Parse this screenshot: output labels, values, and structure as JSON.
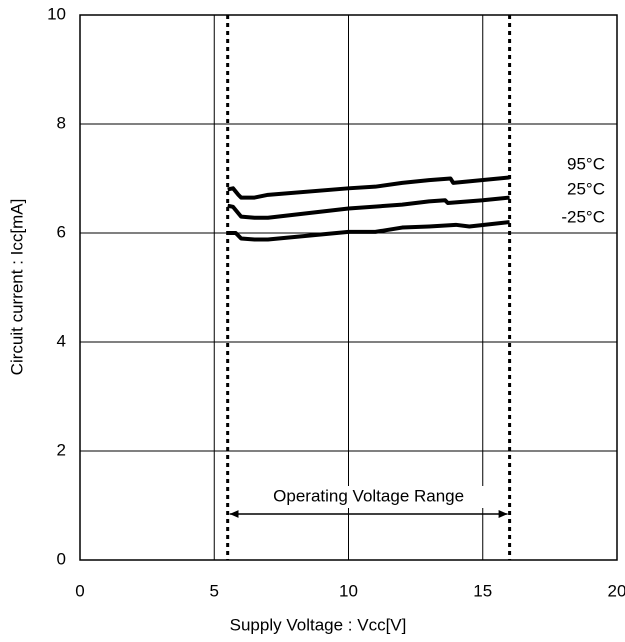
{
  "chart_data": {
    "type": "line",
    "xlabel": "Supply Voltage : Vcc[V]",
    "ylabel": "Circuit current : Icc[mA]",
    "annotation": "Operating Voltage Range",
    "vlines": [
      5.5,
      16
    ],
    "xlim": [
      0,
      20
    ],
    "xticks": [
      0,
      5,
      10,
      15,
      20
    ],
    "ylim": [
      0,
      10
    ],
    "yticks": [
      0,
      2,
      4,
      6,
      8,
      10
    ],
    "grid": true,
    "series": [
      {
        "name": "95°C",
        "color": "#000000",
        "x": [
          5.5,
          5.7,
          5.9,
          6,
          6.5,
          7,
          10,
          11,
          12,
          13,
          13.8,
          13.9,
          16
        ],
        "values": [
          6.8,
          6.82,
          6.7,
          6.65,
          6.65,
          6.7,
          6.82,
          6.85,
          6.92,
          6.97,
          7.0,
          6.92,
          7.02
        ]
      },
      {
        "name": "25°C",
        "color": "#000000",
        "x": [
          5.5,
          5.7,
          6,
          6.5,
          7,
          10,
          12,
          13,
          13.6,
          13.7,
          15,
          16
        ],
        "values": [
          6.5,
          6.48,
          6.3,
          6.28,
          6.28,
          6.45,
          6.52,
          6.58,
          6.6,
          6.55,
          6.6,
          6.65
        ]
      },
      {
        "name": "-25°C",
        "color": "#000000",
        "x": [
          5.5,
          5.8,
          6,
          6.5,
          7,
          10,
          11,
          12,
          13,
          14,
          14.5,
          16
        ],
        "values": [
          6.0,
          6.0,
          5.9,
          5.88,
          5.88,
          6.02,
          6.02,
          6.1,
          6.12,
          6.15,
          6.12,
          6.2
        ]
      }
    ]
  }
}
